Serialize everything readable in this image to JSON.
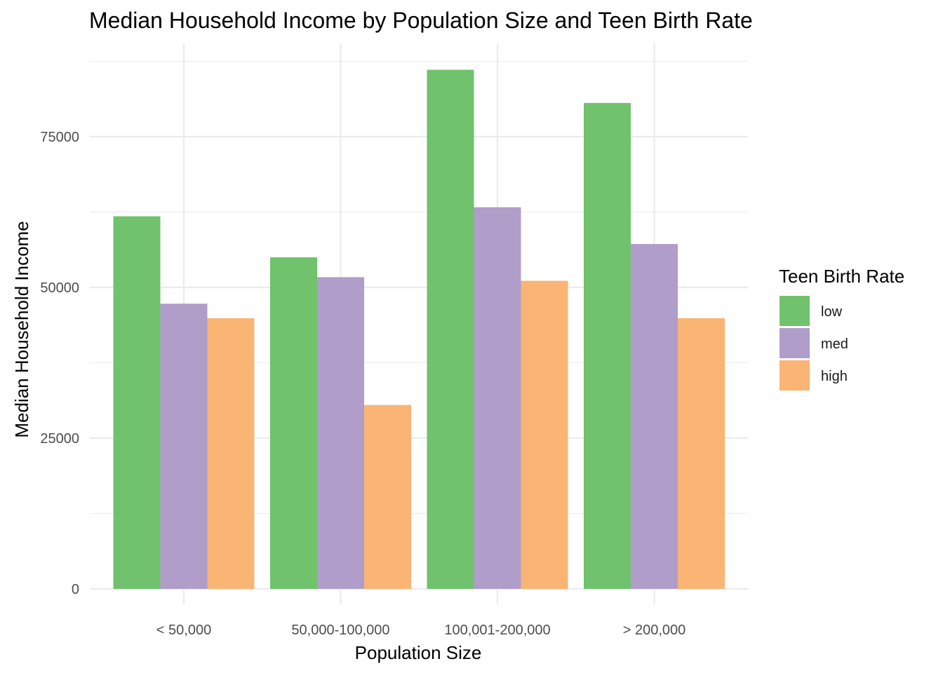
{
  "chart_data": {
    "type": "bar",
    "title": "Median Household Income by Population Size and Teen Birth Rate",
    "xlabel": "Population Size",
    "ylabel": "Median Household Income",
    "categories": [
      "< 50,000",
      "50,000-100,000",
      "100,001-200,000",
      "> 200,000"
    ],
    "series": [
      {
        "name": "low",
        "color": "#70c26d",
        "values": [
          61800,
          55000,
          86100,
          80600
        ]
      },
      {
        "name": "med",
        "color": "#b09dca",
        "values": [
          47300,
          51700,
          63300,
          57200
        ]
      },
      {
        "name": "high",
        "color": "#fab474",
        "values": [
          44900,
          30500,
          51100,
          44900
        ]
      }
    ],
    "yticks": [
      0,
      25000,
      50000,
      75000
    ],
    "ytick_labels": [
      "0",
      "25000",
      "50000",
      "75000"
    ],
    "ylim": [
      0,
      87500
    ],
    "grid": true,
    "legend": {
      "title": "Teen Birth Rate",
      "position": "right"
    }
  }
}
